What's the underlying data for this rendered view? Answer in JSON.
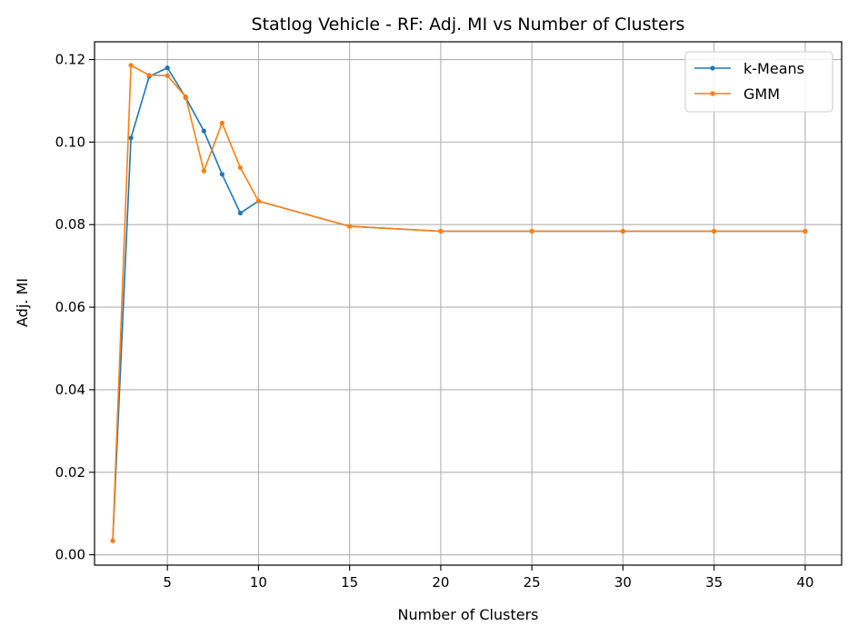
{
  "chart_data": {
    "type": "line",
    "title": "Statlog Vehicle - RF: Adj. MI vs Number of Clusters",
    "xlabel": "Number of Clusters",
    "ylabel": "Adj. MI",
    "xlim": [
      1,
      42
    ],
    "ylim": [
      -0.0025,
      0.1243
    ],
    "xticks": [
      5,
      10,
      15,
      20,
      25,
      30,
      35,
      40
    ],
    "yticks": [
      0.0,
      0.02,
      0.04,
      0.06,
      0.08,
      0.1,
      0.12
    ],
    "ytick_labels": [
      "0.00",
      "0.02",
      "0.04",
      "0.06",
      "0.08",
      "0.10",
      "0.12"
    ],
    "grid": true,
    "legend_position": "top-right",
    "x": [
      2,
      3,
      4,
      5,
      6,
      7,
      8,
      9,
      10,
      15,
      20,
      25,
      30,
      35,
      40
    ],
    "series": [
      {
        "name": "k-Means",
        "color": "#1f77b4",
        "values": [
          0.0034,
          0.101,
          0.1159,
          0.118,
          0.1108,
          0.1027,
          0.0922,
          0.0828,
          0.0857,
          0.0796,
          0.0784,
          0.0784,
          0.0784,
          0.0784,
          0.0784
        ]
      },
      {
        "name": "GMM",
        "color": "#ff7f0e",
        "values": [
          0.0034,
          0.1186,
          0.1162,
          0.1161,
          0.111,
          0.093,
          0.1046,
          0.0938,
          0.0857,
          0.0796,
          0.0784,
          0.0784,
          0.0784,
          0.0784,
          0.0784
        ]
      }
    ]
  }
}
